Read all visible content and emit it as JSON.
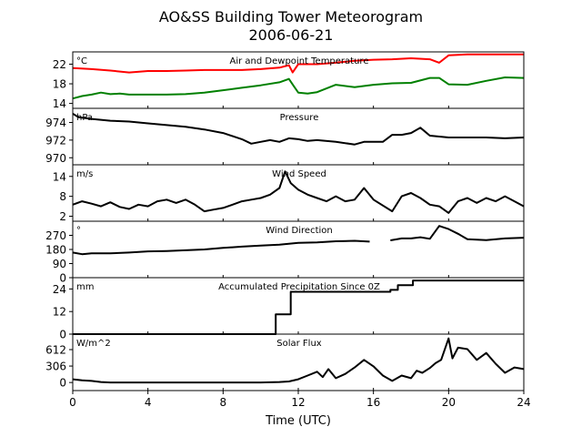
{
  "figure": {
    "title": "AO&SS Building Tower Meteorogram",
    "subtitle": "2006-06-21",
    "xlabel": "Time (UTC)",
    "x_ticks": [
      0,
      4,
      8,
      12,
      16,
      20,
      24
    ],
    "xlim": [
      0,
      24
    ]
  },
  "chart_data": [
    {
      "type": "line",
      "title": "Air and Dewpoint Temperature",
      "ylabel": "°C",
      "ylim": [
        13,
        24.5
      ],
      "y_ticks": [
        14,
        18,
        22
      ],
      "series": [
        {
          "name": "",
          "color": "#ff0000",
          "x": [
            0,
            1,
            2,
            3,
            4,
            5,
            6,
            7,
            8,
            9,
            10,
            11,
            11.5,
            11.7,
            12,
            13,
            14,
            15,
            16,
            17,
            18,
            19,
            19.5,
            20,
            21,
            22,
            23,
            24
          ],
          "y": [
            21.2,
            21.0,
            20.7,
            20.3,
            20.6,
            20.6,
            20.7,
            20.8,
            20.8,
            20.8,
            21.0,
            21.3,
            21.8,
            20.3,
            22.0,
            22.0,
            22.3,
            22.7,
            22.9,
            23.0,
            23.2,
            23.0,
            22.3,
            23.8,
            24.0,
            24.0,
            24.0,
            24.0
          ]
        },
        {
          "name": "",
          "color": "#008000",
          "x": [
            0,
            0.5,
            1,
            1.5,
            2,
            2.5,
            3,
            4,
            5,
            6,
            7,
            8,
            9,
            10,
            11,
            11.5,
            11.8,
            12,
            12.5,
            13,
            14,
            15,
            16,
            17,
            18,
            19,
            19.5,
            20,
            21,
            22,
            23,
            24
          ],
          "y": [
            15.0,
            15.5,
            15.8,
            16.2,
            15.9,
            16.0,
            15.8,
            15.8,
            15.8,
            15.9,
            16.2,
            16.7,
            17.2,
            17.7,
            18.3,
            19.0,
            17.3,
            16.2,
            16.0,
            16.3,
            17.8,
            17.3,
            17.8,
            18.1,
            18.2,
            19.2,
            19.2,
            17.9,
            17.8,
            18.6,
            19.3,
            19.2
          ]
        }
      ]
    },
    {
      "type": "line",
      "title": "Pressure",
      "ylabel": "hPa",
      "ylim": [
        969.2,
        975.6
      ],
      "y_ticks": [
        970,
        972,
        974
      ],
      "series": [
        {
          "name": "",
          "color": "#000000",
          "x": [
            0,
            0.3,
            1,
            2,
            3,
            4,
            5,
            6,
            7,
            8,
            9,
            9.5,
            10,
            10.5,
            11,
            11.5,
            12,
            12.5,
            13,
            14,
            15,
            15.5,
            16,
            16.5,
            17,
            17.5,
            18,
            18.5,
            19,
            20,
            21,
            22,
            23,
            24
          ],
          "y": [
            975.0,
            974.6,
            974.4,
            974.2,
            974.1,
            973.9,
            973.7,
            973.5,
            973.2,
            972.8,
            972.1,
            971.6,
            971.8,
            972.0,
            971.8,
            972.2,
            972.1,
            971.9,
            972.0,
            971.8,
            971.5,
            971.8,
            971.8,
            971.8,
            972.6,
            972.6,
            972.8,
            973.4,
            972.5,
            972.3,
            972.3,
            972.3,
            972.2,
            972.3
          ]
        }
      ]
    },
    {
      "type": "line",
      "title": "Wind Speed",
      "ylabel": "m/s",
      "ylim": [
        0.5,
        17.5
      ],
      "y_ticks": [
        2,
        8,
        14
      ],
      "series": [
        {
          "name": "",
          "color": "#000000",
          "x": [
            0,
            0.5,
            1,
            1.5,
            2,
            2.5,
            3,
            3.5,
            4,
            4.5,
            5,
            5.5,
            6,
            6.5,
            7,
            7.5,
            8,
            8.5,
            9,
            9.5,
            10,
            10.5,
            11,
            11.3,
            11.6,
            12,
            12.5,
            13,
            13.5,
            14,
            14.5,
            15,
            15.5,
            16,
            17,
            17.5,
            18,
            18.5,
            19,
            19.5,
            20,
            20.5,
            21,
            21.5,
            22,
            22.5,
            23,
            23.5,
            24
          ],
          "y": [
            5.5,
            6.5,
            5.8,
            5.0,
            6.2,
            4.8,
            4.2,
            5.5,
            5.0,
            6.5,
            7.0,
            6.0,
            7.0,
            5.5,
            3.5,
            4.0,
            4.5,
            5.5,
            6.5,
            7.0,
            7.5,
            8.5,
            10.5,
            15.5,
            12.0,
            10.0,
            8.5,
            7.5,
            6.5,
            8.0,
            6.5,
            7.0,
            10.5,
            7.0,
            3.5,
            8.0,
            9.0,
            7.5,
            5.5,
            5.0,
            3.0,
            6.5,
            7.5,
            6.0,
            7.5,
            6.5,
            8.0,
            6.5,
            5.0
          ]
        }
      ]
    },
    {
      "type": "line",
      "title": "Wind Direction",
      "ylabel": "°",
      "ylim": [
        0,
        360
      ],
      "y_ticks": [
        0,
        90,
        180,
        270
      ],
      "series": [
        {
          "name": "",
          "color": "#000000",
          "x": [
            0,
            0.5,
            1,
            2,
            3,
            4,
            5,
            6,
            7,
            8,
            9,
            10,
            11,
            12,
            13,
            14,
            15,
            15.8,
            null,
            16.9,
            17.5,
            18,
            18.5,
            19,
            19.5,
            20,
            20.5,
            21,
            22,
            23,
            24
          ],
          "y": [
            160,
            150,
            155,
            155,
            160,
            168,
            170,
            175,
            180,
            190,
            198,
            205,
            210,
            222,
            225,
            232,
            235,
            230,
            null,
            238,
            250,
            250,
            258,
            248,
            330,
            310,
            280,
            245,
            240,
            250,
            255
          ]
        }
      ]
    },
    {
      "type": "line",
      "title": "Accumulated Precipitation Since 0Z",
      "ylabel": "mm",
      "ylim": [
        0,
        30
      ],
      "y_ticks": [
        0,
        12,
        24
      ],
      "series": [
        {
          "name": "",
          "color": "#000000",
          "x": [
            0,
            10.8,
            10.8,
            11.6,
            11.6,
            16.9,
            16.9,
            17.3,
            17.3,
            18.1,
            18.1,
            24
          ],
          "y": [
            0,
            0,
            10.5,
            10.5,
            22.5,
            22.5,
            23.5,
            23.5,
            26.0,
            26.0,
            28.5,
            28.5
          ]
        }
      ]
    },
    {
      "type": "line",
      "title": "Solar Flux",
      "ylabel": "W/m^2",
      "ylim": [
        -150,
        900
      ],
      "y_ticks": [
        0,
        306,
        612
      ],
      "series": [
        {
          "name": "",
          "color": "#000000",
          "x": [
            0,
            0.5,
            1,
            1.5,
            2,
            4,
            8,
            10,
            11,
            11.5,
            12,
            12.5,
            13,
            13.3,
            13.6,
            14,
            14.5,
            15,
            15.5,
            16,
            16.5,
            17,
            17.5,
            18,
            18.3,
            18.6,
            19,
            19.3,
            19.6,
            20,
            20.2,
            20.5,
            21,
            21.5,
            22,
            22.5,
            23,
            23.5,
            24
          ],
          "y": [
            60,
            40,
            30,
            10,
            0,
            0,
            0,
            0,
            10,
            20,
            60,
            130,
            200,
            100,
            250,
            80,
            160,
            280,
            420,
            300,
            130,
            30,
            130,
            80,
            220,
            180,
            270,
            360,
            420,
            820,
            450,
            650,
            620,
            420,
            550,
            350,
            180,
            280,
            250
          ]
        }
      ]
    }
  ]
}
